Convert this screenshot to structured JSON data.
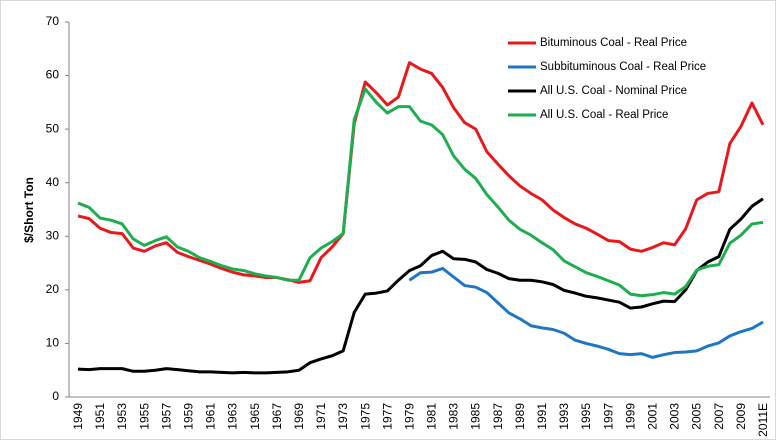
{
  "chart_data": {
    "type": "line",
    "y_label": "$/Short Ton",
    "categories": [
      "1949",
      null,
      "1951",
      null,
      "1953",
      null,
      "1955",
      null,
      "1957",
      null,
      "1959",
      null,
      "1961",
      null,
      "1963",
      null,
      "1965",
      null,
      "1967",
      null,
      "1969",
      null,
      "1971",
      null,
      "1973",
      null,
      "1975",
      null,
      "1977",
      null,
      "1979",
      null,
      "1981",
      null,
      "1983",
      null,
      "1985",
      null,
      "1987",
      null,
      "1989",
      null,
      "1991",
      null,
      "1993",
      null,
      "1995",
      null,
      "1997",
      null,
      "1999",
      null,
      "2001",
      null,
      "2003",
      null,
      "2005",
      null,
      "2007",
      null,
      "2009",
      null,
      "2011E"
    ],
    "series": [
      {
        "name": "Bituminous Coal - Real Price",
        "color": "#e8191c",
        "values": [
          33.8,
          33.3,
          31.5,
          30.7,
          30.5,
          27.8,
          27.2,
          28.2,
          28.8,
          27,
          26.2,
          25.5,
          24.8,
          24,
          23.3,
          22.8,
          22.6,
          22.3,
          22.3,
          21.9,
          21.4,
          21.7,
          26,
          28,
          30.5,
          51,
          58.8,
          56.8,
          54.5,
          56,
          62.4,
          61.2,
          60.4,
          57.8,
          54,
          51.2,
          50,
          45.8,
          43.5,
          41.3,
          39.4,
          38,
          36.8,
          34.9,
          33.5,
          32.3,
          31.5,
          30.4,
          29.2,
          29,
          27.6,
          27.2,
          27.9,
          28.8,
          28.4,
          31.4,
          36.8,
          38,
          38.3,
          47.3,
          50.5,
          54.9,
          50.8
        ]
      },
      {
        "name": "Subbituminous Coal - Real Price",
        "color": "#1f77c4",
        "values": [
          null,
          null,
          null,
          null,
          null,
          null,
          null,
          null,
          null,
          null,
          null,
          null,
          null,
          null,
          null,
          null,
          null,
          null,
          null,
          null,
          null,
          null,
          null,
          null,
          null,
          null,
          null,
          null,
          null,
          null,
          21.8,
          23.2,
          23.3,
          24,
          22.4,
          20.8,
          20.5,
          19.5,
          17.6,
          15.7,
          14.6,
          13.3,
          12.9,
          12.6,
          11.9,
          10.6,
          10,
          9.5,
          8.9,
          8.1,
          7.9,
          8.1,
          7.4,
          7.9,
          8.3,
          8.4,
          8.6,
          9.5,
          10.1,
          11.4,
          12.2,
          12.8,
          14
        ]
      },
      {
        "name": "All U.S. Coal - Nominal Price",
        "color": "#000000",
        "values": [
          5.2,
          5.1,
          5.3,
          5.3,
          5.3,
          4.8,
          4.8,
          5,
          5.3,
          5.1,
          4.9,
          4.7,
          4.7,
          4.6,
          4.5,
          4.6,
          4.5,
          4.5,
          4.6,
          4.7,
          5,
          6.4,
          7.1,
          7.7,
          8.6,
          15.8,
          19.2,
          19.4,
          19.8,
          21.8,
          23.6,
          24.5,
          26.4,
          27.2,
          25.8,
          25.7,
          25.2,
          23.8,
          23.1,
          22.1,
          21.8,
          21.8,
          21.5,
          21,
          19.9,
          19.4,
          18.8,
          18.5,
          18.1,
          17.7,
          16.6,
          16.8,
          17.4,
          17.9,
          17.8,
          20,
          23.6,
          25.2,
          26.2,
          31.3,
          33.2,
          35.6,
          37
        ]
      },
      {
        "name": "All U.S. Coal - Real Price",
        "color": "#1fae4f",
        "values": [
          36.2,
          35.4,
          33.4,
          33,
          32.3,
          29.5,
          28.3,
          29.2,
          29.9,
          28,
          27.2,
          26,
          25.3,
          24.5,
          23.9,
          23.6,
          23,
          22.6,
          22.3,
          21.8,
          21.8,
          26,
          27.8,
          29,
          30.5,
          51.8,
          57.5,
          55,
          53,
          54.2,
          54.2,
          51.5,
          50.8,
          49,
          45,
          42.5,
          40.8,
          37.8,
          35.5,
          33,
          31.3,
          30.2,
          28.8,
          27.5,
          25.4,
          24.3,
          23.2,
          22.5,
          21.7,
          20.9,
          19.2,
          18.9,
          19.1,
          19.5,
          19.2,
          20.6,
          23.7,
          24.4,
          24.7,
          28.7,
          30.2,
          32.3,
          32.6
        ]
      }
    ],
    "ylim": [
      0,
      70
    ],
    "yticks": [
      0,
      10,
      20,
      30,
      40,
      50,
      60,
      70
    ],
    "grid": false,
    "legend": "upper right"
  }
}
